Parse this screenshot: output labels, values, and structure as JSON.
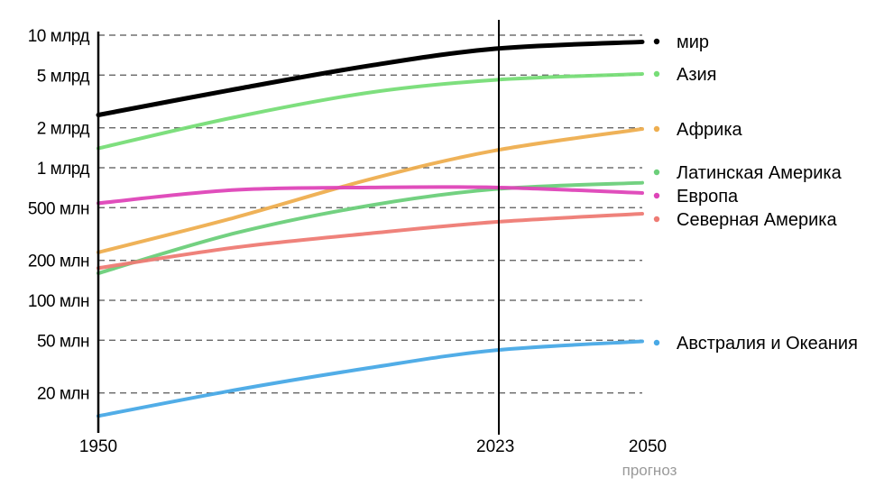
{
  "chart_data": {
    "type": "line",
    "title": "",
    "xlabel": "",
    "ylabel": "",
    "y_scale": "log",
    "ylim": [
      0.01,
      10
    ],
    "y_unit": "billion",
    "x": [
      1950,
      1975,
      2000,
      2023,
      2050
    ],
    "x_tick_labels": [
      {
        "value": 1950,
        "label": "1950"
      },
      {
        "value": 2023,
        "label": "2023"
      },
      {
        "value": 2050,
        "label": "2050"
      }
    ],
    "forecast_start": 2023,
    "forecast_label": "прогноз",
    "y_ticks": [
      {
        "value": 10,
        "label": "10 млрд"
      },
      {
        "value": 5,
        "label": "5 млрд"
      },
      {
        "value": 2,
        "label": "2 млрд"
      },
      {
        "value": 1,
        "label": "1 млрд"
      },
      {
        "value": 0.5,
        "label": "500 млн"
      },
      {
        "value": 0.2,
        "label": "200 млн"
      },
      {
        "value": 0.1,
        "label": "100 млн"
      },
      {
        "value": 0.05,
        "label": "50 млн"
      },
      {
        "value": 0.02,
        "label": "20 млн"
      }
    ],
    "grid": true,
    "legend_position": "right",
    "series": [
      {
        "name": "мир",
        "color": "#000000",
        "values": [
          2.5,
          3.9,
          5.9,
          7.9,
          8.9
        ]
      },
      {
        "name": "Азия",
        "color": "#77dd77",
        "values": [
          1.4,
          2.4,
          3.7,
          4.6,
          5.1
        ]
      },
      {
        "name": "Африка",
        "color": "#eeae4f",
        "values": [
          0.23,
          0.42,
          0.82,
          1.35,
          1.96
        ]
      },
      {
        "name": "Латинская Америка",
        "color": "#6ccf7a",
        "values": [
          0.16,
          0.32,
          0.52,
          0.69,
          0.77
        ]
      },
      {
        "name": "Европа",
        "color": "#de44b8",
        "values": [
          0.54,
          0.68,
          0.71,
          0.71,
          0.645
        ]
      },
      {
        "name": "Северная Америка",
        "color": "#ee7b74",
        "values": [
          0.175,
          0.25,
          0.32,
          0.39,
          0.45
        ]
      },
      {
        "name": "Австралия и Океания",
        "color": "#48a9e6",
        "values": [
          0.0134,
          0.021,
          0.031,
          0.042,
          0.049
        ]
      }
    ]
  }
}
